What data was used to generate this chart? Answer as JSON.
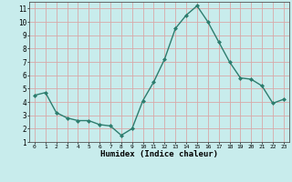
{
  "x": [
    0,
    1,
    2,
    3,
    4,
    5,
    6,
    7,
    8,
    9,
    10,
    11,
    12,
    13,
    14,
    15,
    16,
    17,
    18,
    19,
    20,
    21,
    22,
    23
  ],
  "y": [
    4.5,
    4.7,
    3.2,
    2.8,
    2.6,
    2.6,
    2.3,
    2.2,
    1.5,
    2.0,
    4.1,
    5.5,
    7.2,
    9.5,
    10.5,
    11.2,
    10.0,
    8.5,
    7.0,
    5.8,
    5.7,
    5.2,
    3.9,
    4.2
  ],
  "line_color": "#2d7d6e",
  "marker": "D",
  "marker_size": 2,
  "bg_color": "#c8ecec",
  "grid_color": "#d8a8a8",
  "xlabel": "Humidex (Indice chaleur)",
  "ylim": [
    1,
    11.5
  ],
  "xlim": [
    -0.5,
    23.5
  ],
  "yticks": [
    1,
    2,
    3,
    4,
    5,
    6,
    7,
    8,
    9,
    10,
    11
  ],
  "xticks": [
    0,
    1,
    2,
    3,
    4,
    5,
    6,
    7,
    8,
    9,
    10,
    11,
    12,
    13,
    14,
    15,
    16,
    17,
    18,
    19,
    20,
    21,
    22,
    23
  ]
}
